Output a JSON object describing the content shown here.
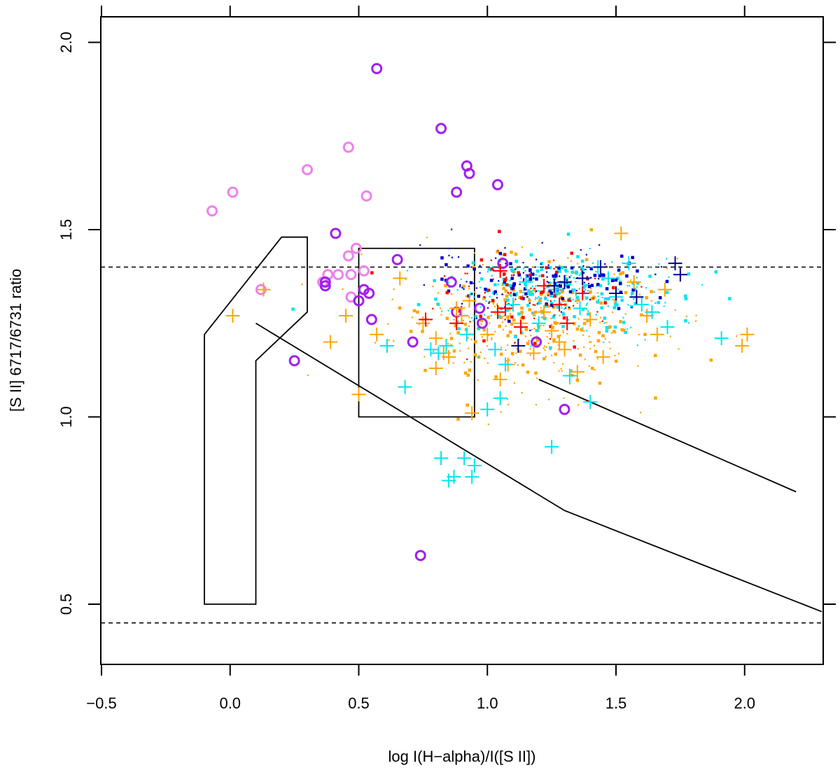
{
  "chart_data": {
    "type": "scatter",
    "title": "",
    "xlabel": "log I(H−alpha)/I([S II])",
    "ylabel": "[S II] 6717/6731 ratio",
    "xlim": [
      -0.5,
      2.3
    ],
    "ylim": [
      0.33,
      2.06
    ],
    "x_ticks": [
      -0.5,
      0.0,
      0.5,
      1.0,
      1.5,
      2.0
    ],
    "x_tick_labels": [
      "−0.5",
      "0.0",
      "0.5",
      "1.0",
      "1.5",
      "2.0"
    ],
    "y_ticks": [
      0.5,
      1.0,
      1.5,
      2.0
    ],
    "y_tick_labels": [
      "0.5",
      "1.0",
      "1.5",
      "2.0"
    ],
    "grid": false,
    "colors": {
      "orange": "#FFA500",
      "cyan": "#00E5EE",
      "blue": "#0000CD",
      "red": "#FF0000",
      "navy": "#00008B",
      "purple": "#A020F0",
      "violet": "#EE82EE",
      "line": "#000000"
    },
    "reference_lines": [
      {
        "name": "upper-dashed-limit",
        "y": 1.4,
        "style": "dashed"
      },
      {
        "name": "lower-dashed-limit",
        "y": 0.45,
        "style": "dashed"
      }
    ],
    "regions": [
      {
        "name": "left-region-polygon",
        "points": [
          [
            -0.1,
            0.5
          ],
          [
            0.1,
            0.5
          ],
          [
            0.1,
            1.15
          ],
          [
            0.3,
            1.28
          ],
          [
            0.3,
            1.48
          ],
          [
            0.2,
            1.48
          ],
          [
            -0.1,
            1.22
          ]
        ]
      },
      {
        "name": "center-box-region",
        "points": [
          [
            0.5,
            1.0
          ],
          [
            0.95,
            1.0
          ],
          [
            0.95,
            1.45
          ],
          [
            0.5,
            1.45
          ]
        ]
      }
    ],
    "lines": [
      {
        "name": "lower-boundary-line",
        "points": [
          [
            0.1,
            1.25
          ],
          [
            1.3,
            0.75
          ],
          [
            2.3,
            0.48
          ]
        ]
      },
      {
        "name": "upper-boundary-line",
        "points": [
          [
            1.2,
            1.1
          ],
          [
            2.2,
            0.8
          ]
        ]
      }
    ],
    "series": [
      {
        "name": "violet-open-circles",
        "marker": "circle-open",
        "color": "violet",
        "x": [
          -0.07,
          0.01,
          0.12,
          0.3,
          0.36,
          0.38,
          0.42,
          0.46,
          0.47,
          0.49,
          0.52,
          0.53,
          0.46,
          0.47
        ],
        "y": [
          1.55,
          1.6,
          1.34,
          1.66,
          1.36,
          1.38,
          1.38,
          1.72,
          1.38,
          1.45,
          1.39,
          1.59,
          1.43,
          1.32
        ]
      },
      {
        "name": "purple-open-circles",
        "marker": "circle-open",
        "color": "purple",
        "x": [
          0.57,
          0.82,
          0.92,
          0.93,
          1.04,
          0.88,
          0.41,
          0.37,
          0.37,
          0.52,
          0.54,
          0.5,
          0.65,
          0.55,
          0.86,
          0.88,
          0.97,
          0.98,
          1.06,
          0.71,
          1.19,
          1.3,
          0.74,
          0.25
        ],
        "y": [
          1.93,
          1.77,
          1.67,
          1.65,
          1.62,
          1.6,
          1.49,
          1.35,
          1.36,
          1.34,
          1.33,
          1.31,
          1.42,
          1.26,
          1.36,
          1.28,
          1.29,
          1.25,
          1.41,
          1.2,
          1.2,
          1.02,
          0.63,
          1.15
        ]
      },
      {
        "name": "orange-plus-markers",
        "marker": "plus",
        "color": "orange",
        "x": [
          0.01,
          0.13,
          0.39,
          0.45,
          0.5,
          0.66,
          0.57,
          0.75,
          0.8,
          0.83,
          0.88,
          0.93,
          0.94,
          1.0,
          1.05,
          1.08,
          1.13,
          1.18,
          1.22,
          1.25,
          1.28,
          1.3,
          1.35,
          1.4,
          1.45,
          1.52,
          1.57,
          1.62,
          1.66,
          1.69,
          1.99,
          2.01,
          0.8,
          0.85,
          0.9
        ],
        "y": [
          1.27,
          1.34,
          1.2,
          1.27,
          1.06,
          1.37,
          1.22,
          1.25,
          1.13,
          1.17,
          1.29,
          1.31,
          1.01,
          1.22,
          1.1,
          1.14,
          1.25,
          1.17,
          1.28,
          1.23,
          1.2,
          1.18,
          1.12,
          1.26,
          1.16,
          1.49,
          1.36,
          1.27,
          1.22,
          1.34,
          1.19,
          1.22,
          1.21,
          1.16,
          1.27
        ]
      },
      {
        "name": "cyan-plus-markers",
        "marker": "plus",
        "color": "cyan",
        "x": [
          0.61,
          0.68,
          0.78,
          0.82,
          0.85,
          0.81,
          0.87,
          0.91,
          0.94,
          0.95,
          0.92,
          0.84,
          1.05,
          1.07,
          1.25,
          1.32,
          1.4,
          1.47,
          1.55,
          1.6,
          1.64,
          1.7,
          1.91,
          1.0,
          1.03,
          1.1,
          1.15,
          1.2,
          1.27,
          1.36,
          1.43,
          1.5
        ],
        "y": [
          1.19,
          1.08,
          1.18,
          0.89,
          0.83,
          1.17,
          0.84,
          0.89,
          0.84,
          0.87,
          1.22,
          1.19,
          1.05,
          1.14,
          0.92,
          1.11,
          1.04,
          1.37,
          1.41,
          1.3,
          1.28,
          1.24,
          1.21,
          1.02,
          1.18,
          1.3,
          1.36,
          1.25,
          1.34,
          1.29,
          1.4,
          1.32
        ]
      },
      {
        "name": "red-plus-markers",
        "marker": "plus",
        "color": "red",
        "x": [
          0.76,
          0.88,
          1.04,
          1.07,
          1.13,
          1.22,
          1.28,
          1.31,
          1.37,
          1.05
        ],
        "y": [
          1.26,
          1.25,
          1.28,
          1.29,
          1.24,
          1.35,
          1.3,
          1.25,
          1.33,
          1.39
        ]
      },
      {
        "name": "navy-plus-markers",
        "marker": "plus",
        "color": "navy",
        "x": [
          1.12,
          1.26,
          1.3,
          1.37,
          1.44,
          1.5,
          1.58,
          1.73,
          1.75
        ],
        "y": [
          1.19,
          1.35,
          1.36,
          1.37,
          1.4,
          1.33,
          1.32,
          1.41,
          1.38
        ]
      }
    ],
    "dense_clouds": [
      {
        "name": "orange-square-points",
        "color": "orange",
        "cx": 1.15,
        "cy": 1.25,
        "sx": 0.25,
        "sy": 0.09,
        "n": 380
      },
      {
        "name": "cyan-square-points",
        "color": "cyan",
        "cx": 1.25,
        "cy": 1.33,
        "sx": 0.25,
        "sy": 0.05,
        "n": 300
      },
      {
        "name": "blue-square-points",
        "color": "blue",
        "cx": 1.2,
        "cy": 1.36,
        "sx": 0.22,
        "sy": 0.04,
        "n": 170
      },
      {
        "name": "red-square-points",
        "color": "red",
        "cx": 1.15,
        "cy": 1.33,
        "sx": 0.18,
        "sy": 0.06,
        "n": 90
      }
    ]
  }
}
